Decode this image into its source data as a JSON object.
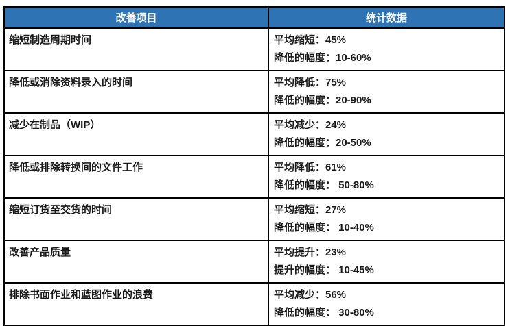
{
  "colors": {
    "header_bg": "#2E74B5",
    "header_text": "#FFFFFF",
    "body_text": "#1A1A1A",
    "border": "#000000",
    "page_bg": "#FFFFFF"
  },
  "table": {
    "headers": [
      {
        "label": "改善项目"
      },
      {
        "label": "统计数据"
      }
    ],
    "rows": [
      {
        "item": "缩短制造周期时间",
        "stat_line1": "平均缩短：45%",
        "stat_line2": "降低的幅度：10-60%"
      },
      {
        "item": "降低或消除资料录入的时间",
        "stat_line1": "平均降低：75%",
        "stat_line2": "降低的幅度：20-90%"
      },
      {
        "item": "减少在制品（WIP）",
        "stat_line1": "平均减少：24%",
        "stat_line2": "降低的幅度：20-50%"
      },
      {
        "item": "降低或排除转换间的文件工作",
        "stat_line1": "平均降低：61%",
        "stat_line2": "降低的幅度： 50-80%"
      },
      {
        "item": "缩短订货至交货的时间",
        "stat_line1": "平均缩短：27%",
        "stat_line2": "降低的幅度： 10-40%"
      },
      {
        "item": "改善产品质量",
        "stat_line1": "平均提升：23%",
        "stat_line2": "提升的幅度： 10-45%"
      },
      {
        "item": "排除书面作业和蓝图作业的浪费",
        "stat_line1": "平均减少：56%",
        "stat_line2": "降低的幅度： 30-80%"
      }
    ]
  }
}
